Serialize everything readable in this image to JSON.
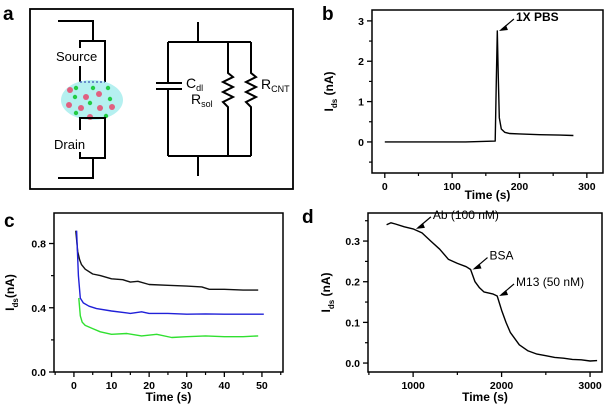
{
  "panel_labels": [
    "a",
    "b",
    "c",
    "d"
  ],
  "diagram": {
    "source_label": "Source",
    "drain_label": "Drain",
    "cdl": {
      "main": "C",
      "sub": "dl"
    },
    "rsol": {
      "main": "R",
      "sub": "sol"
    },
    "rcnt": {
      "main": "R",
      "sub": "CNT"
    },
    "colors": {
      "droplet": "#b5f0f0",
      "ion_positive": "#e06080",
      "ion_negative": "#22cc44"
    }
  },
  "chart_data": [
    {
      "panel": "b",
      "type": "line",
      "xlabel": "Time (s)",
      "ylabel": {
        "main": "I",
        "sub": "ds",
        "unit": " (nA)"
      },
      "xlim": [
        -19,
        324
      ],
      "ylim": [
        -0.77,
        3.27
      ],
      "xticks": [
        0,
        100,
        200,
        300
      ],
      "xminor": [
        50,
        150,
        250
      ],
      "yticks": [
        0,
        1,
        2,
        3
      ],
      "yminor": [
        -0.5,
        0.5,
        1.5,
        2.5
      ],
      "grid": false,
      "series": [
        {
          "color": "#000000",
          "x": [
            0,
            60,
            120,
            164,
            165.5,
            167,
            168.5,
            170,
            173,
            178,
            185,
            200,
            230,
            260,
            280
          ],
          "y": [
            0,
            0,
            0,
            0.02,
            1.5,
            2.75,
            1.6,
            0.6,
            0.32,
            0.24,
            0.21,
            0.2,
            0.18,
            0.17,
            0.16
          ]
        }
      ],
      "annotations": [
        {
          "text": "1X PBS",
          "x": 168,
          "y": 2.75
        }
      ]
    },
    {
      "panel": "c",
      "type": "line",
      "xlabel": "Time (s)",
      "ylabel": {
        "main": "I",
        "sub": "ds",
        "unit": "(nA)"
      },
      "xlim": [
        -5.3,
        55.6
      ],
      "ylim": [
        0,
        0.99
      ],
      "xticks": [
        0,
        10,
        20,
        30,
        40,
        50
      ],
      "xminor": [
        -5,
        5,
        15,
        25,
        35,
        45,
        55
      ],
      "yticks": [
        0.0,
        0.4,
        0.8
      ],
      "ytick_labels": [
        "0.0",
        "0.4",
        "0.8"
      ],
      "yminor": [
        0.2,
        0.6
      ],
      "grid": false,
      "series": [
        {
          "color": "#111111",
          "x": [
            0.5,
            1,
            1.5,
            2,
            3,
            5,
            7,
            10,
            13,
            15,
            17,
            20,
            25,
            30,
            34,
            36,
            40,
            45,
            49
          ],
          "y": [
            0.88,
            0.75,
            0.7,
            0.67,
            0.64,
            0.61,
            0.6,
            0.58,
            0.575,
            0.56,
            0.565,
            0.545,
            0.54,
            0.535,
            0.53,
            0.515,
            0.515,
            0.51,
            0.51
          ]
        },
        {
          "color": "#2020d8",
          "x": [
            0.7,
            1.2,
            1.7,
            2.5,
            4,
            6,
            10,
            15,
            18,
            20,
            25,
            30,
            35,
            40,
            45,
            50.5
          ],
          "y": [
            0.88,
            0.6,
            0.46,
            0.43,
            0.41,
            0.395,
            0.38,
            0.365,
            0.375,
            0.365,
            0.365,
            0.36,
            0.362,
            0.36,
            0.36,
            0.36
          ]
        },
        {
          "color": "#30e030",
          "x": [
            1.3,
            1.7,
            2.2,
            3,
            5,
            7,
            10,
            14,
            18,
            22,
            26,
            30,
            35,
            40,
            45,
            49
          ],
          "y": [
            0.46,
            0.35,
            0.31,
            0.29,
            0.27,
            0.25,
            0.235,
            0.24,
            0.225,
            0.235,
            0.215,
            0.22,
            0.225,
            0.22,
            0.22,
            0.225
          ]
        }
      ]
    },
    {
      "panel": "d",
      "type": "line",
      "xlabel": "Time (s)",
      "ylabel": {
        "main": "I",
        "sub": "ds",
        "unit": " (nA)"
      },
      "xlim": [
        490,
        3135
      ],
      "ylim": [
        -0.022,
        0.369
      ],
      "xticks": [
        1000,
        2000,
        3000
      ],
      "xminor": [
        500,
        1500,
        2500
      ],
      "yticks": [
        0.0,
        0.1,
        0.2,
        0.3
      ],
      "ytick_labels": [
        "0.0",
        "0.1",
        "0.2",
        "0.3"
      ],
      "yminor": [
        0.05,
        0.15,
        0.25,
        0.35
      ],
      "grid": false,
      "series": [
        {
          "color": "#000000",
          "x": [
            700,
            750,
            800,
            900,
            1000,
            1100,
            1200,
            1300,
            1400,
            1500,
            1600,
            1650,
            1700,
            1750,
            1800,
            1900,
            1950,
            2000,
            2050,
            2100,
            2200,
            2300,
            2400,
            2500,
            2600,
            2700,
            2800,
            2900,
            3000,
            3080
          ],
          "y": [
            0.34,
            0.345,
            0.342,
            0.335,
            0.33,
            0.32,
            0.3,
            0.28,
            0.255,
            0.245,
            0.237,
            0.23,
            0.2,
            0.185,
            0.175,
            0.17,
            0.165,
            0.13,
            0.1,
            0.075,
            0.045,
            0.03,
            0.022,
            0.018,
            0.014,
            0.012,
            0.009,
            0.008,
            0.005,
            0.006
          ]
        }
      ],
      "annotations": [
        {
          "text": "Ab (100 nM)",
          "x": 1020,
          "y": 0.33
        },
        {
          "text": "BSA",
          "x": 1660,
          "y": 0.23
        },
        {
          "text": "M13 (50 nM)",
          "x": 1960,
          "y": 0.165
        }
      ]
    }
  ]
}
